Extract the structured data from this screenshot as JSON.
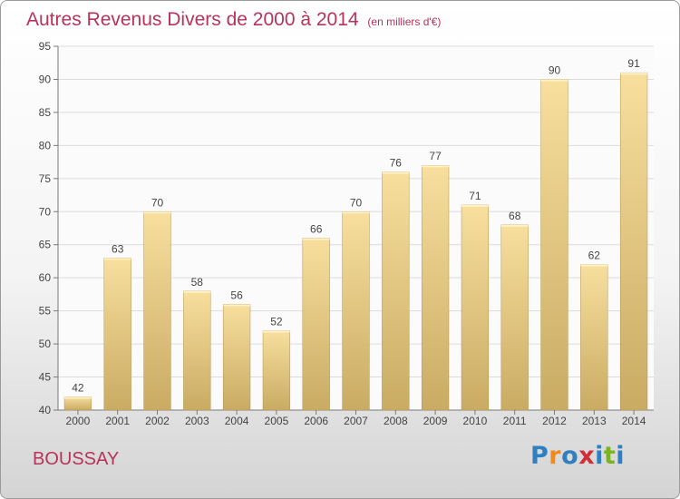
{
  "header": {
    "title": "Autres Revenus Divers de 2000 à 2014",
    "subtitle": "(en milliers d'€)"
  },
  "location": "BOUSSAY",
  "logo": {
    "text": "Proxiti",
    "letters": [
      {
        "ch": "P",
        "color": "#2f7fc1"
      },
      {
        "ch": "r",
        "color": "#f08a1d"
      },
      {
        "ch": "o",
        "color": "#2f7fc1"
      },
      {
        "ch": "x",
        "color": "#d02f37"
      },
      {
        "ch": "i",
        "color": "#2f7fc1"
      },
      {
        "ch": "t",
        "color": "#7ab51d"
      },
      {
        "ch": "i",
        "color": "#2f7fc1"
      }
    ]
  },
  "colors": {
    "bar_light": "#f8df9e",
    "bar_dark": "#c9ab63",
    "bar_edge": "#b39452",
    "title": "#b8335a",
    "grid": "#dcdcdc",
    "axis": "#7a7a7a"
  },
  "chart_data": {
    "type": "bar",
    "categories": [
      "2000",
      "2001",
      "2002",
      "2003",
      "2004",
      "2005",
      "2006",
      "2007",
      "2008",
      "2009",
      "2010",
      "2011",
      "2012",
      "2013",
      "2014"
    ],
    "values": [
      42,
      63,
      70,
      58,
      56,
      52,
      66,
      70,
      76,
      77,
      71,
      68,
      90,
      62,
      91
    ],
    "ylim": [
      40,
      95
    ],
    "yticks": [
      40,
      45,
      50,
      55,
      60,
      65,
      70,
      75,
      80,
      85,
      90,
      95
    ],
    "grid": true,
    "data_labels": true
  }
}
